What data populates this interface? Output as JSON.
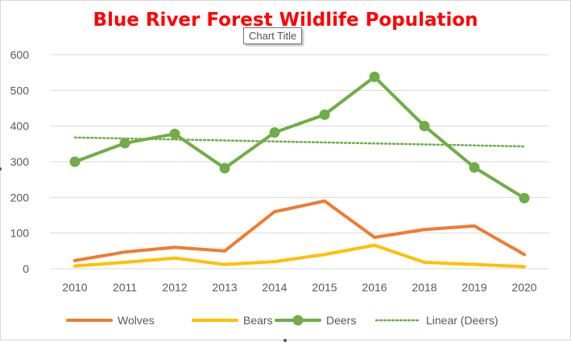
{
  "chart_data": {
    "type": "line",
    "title": "Blue River Forest Wildlife Population",
    "tooltip": "Chart Title",
    "categories": [
      "2010",
      "2011",
      "2012",
      "2013",
      "2014",
      "2015",
      "2016",
      "2018",
      "2019",
      "2020"
    ],
    "ylim": [
      0,
      600
    ],
    "yticks": [
      0,
      100,
      200,
      300,
      400,
      500,
      600
    ],
    "grid": true,
    "series": [
      {
        "name": "Wolves",
        "color": "#ed7d31",
        "values": [
          23,
          47,
          60,
          50,
          160,
          190,
          88,
          110,
          120,
          40
        ],
        "markers": false
      },
      {
        "name": "Bears",
        "color": "#ffc000",
        "values": [
          8,
          18,
          30,
          12,
          20,
          40,
          66,
          18,
          12,
          6
        ],
        "markers": false
      },
      {
        "name": "Deers",
        "color": "#70ad47",
        "values": [
          300,
          352,
          378,
          282,
          382,
          432,
          538,
          400,
          284,
          198
        ],
        "markers": true
      }
    ],
    "trendline": {
      "name": "Linear (Deers)",
      "color": "#70ad47",
      "start": 368,
      "end": 343
    },
    "legend_position": "bottom"
  }
}
